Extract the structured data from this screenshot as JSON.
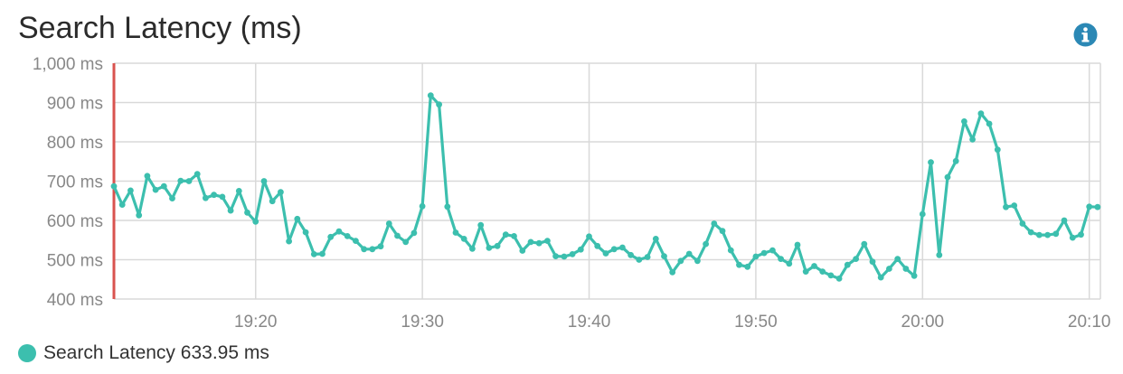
{
  "title": "Search Latency (ms)",
  "info_icon": "info-circle-icon",
  "colors": {
    "series": "#3cbfae",
    "marker": "#d9534f",
    "grid": "#d9d9d9",
    "axis_text": "#888888",
    "info": "#2b88b5"
  },
  "legend": {
    "label": "Search Latency",
    "value": "633.95 ms"
  },
  "chart_data": {
    "type": "line",
    "title": "Search Latency (ms)",
    "xlabel": "",
    "ylabel": "",
    "xlim": [
      "19:11:30",
      "20:10:40"
    ],
    "ylim": [
      400,
      1000
    ],
    "x_ticks": [
      "19:20",
      "19:30",
      "19:40",
      "19:50",
      "20:00",
      "20:10"
    ],
    "y_ticks": [
      "400 ms",
      "500 ms",
      "600 ms",
      "700 ms",
      "800 ms",
      "900 ms",
      "1,000 ms"
    ],
    "grid": true,
    "legend_position": "bottom-left",
    "series": [
      {
        "name": "Search Latency",
        "x": [
          "19:11:30",
          "19:12:00",
          "19:12:30",
          "19:13:00",
          "19:13:30",
          "19:14:00",
          "19:14:30",
          "19:15:00",
          "19:15:30",
          "19:16:00",
          "19:16:30",
          "19:17:00",
          "19:17:30",
          "19:18:00",
          "19:18:30",
          "19:19:00",
          "19:19:30",
          "19:20:00",
          "19:20:30",
          "19:21:00",
          "19:21:30",
          "19:22:00",
          "19:22:30",
          "19:23:00",
          "19:23:30",
          "19:24:00",
          "19:24:30",
          "19:25:00",
          "19:25:30",
          "19:26:00",
          "19:26:30",
          "19:27:00",
          "19:27:30",
          "19:28:00",
          "19:28:30",
          "19:29:00",
          "19:29:30",
          "19:30:00",
          "19:30:30",
          "19:31:00",
          "19:31:30",
          "19:32:00",
          "19:32:30",
          "19:33:00",
          "19:33:30",
          "19:34:00",
          "19:34:30",
          "19:35:00",
          "19:35:30",
          "19:36:00",
          "19:36:30",
          "19:37:00",
          "19:37:30",
          "19:38:00",
          "19:38:30",
          "19:39:00",
          "19:39:30",
          "19:40:00",
          "19:40:30",
          "19:41:00",
          "19:41:30",
          "19:42:00",
          "19:42:30",
          "19:43:00",
          "19:43:30",
          "19:44:00",
          "19:44:30",
          "19:45:00",
          "19:45:30",
          "19:46:00",
          "19:46:30",
          "19:47:00",
          "19:47:30",
          "19:48:00",
          "19:48:30",
          "19:49:00",
          "19:49:30",
          "19:50:00",
          "19:50:30",
          "19:51:00",
          "19:51:30",
          "19:52:00",
          "19:52:30",
          "19:53:00",
          "19:53:30",
          "19:54:00",
          "19:54:30",
          "19:55:00",
          "19:55:30",
          "19:56:00",
          "19:56:30",
          "19:57:00",
          "19:57:30",
          "19:58:00",
          "19:58:30",
          "19:59:00",
          "19:59:30",
          "20:00:00",
          "20:00:30",
          "20:01:00",
          "20:01:30",
          "20:02:00",
          "20:02:30",
          "20:03:00",
          "20:03:30",
          "20:04:00",
          "20:04:30",
          "20:05:00",
          "20:05:30",
          "20:06:00",
          "20:06:30",
          "20:07:00",
          "20:07:30",
          "20:08:00",
          "20:08:30",
          "20:09:00",
          "20:09:30",
          "20:10:00",
          "20:10:30"
        ],
        "values": [
          687,
          640,
          676,
          613,
          713,
          678,
          687,
          656,
          701,
          700,
          718,
          657,
          665,
          660,
          625,
          675,
          620,
          597,
          700,
          649,
          672,
          547,
          604,
          570,
          514,
          515,
          558,
          572,
          560,
          548,
          527,
          527,
          534,
          592,
          561,
          545,
          568,
          636,
          918,
          895,
          635,
          569,
          553,
          528,
          588,
          530,
          535,
          564,
          560,
          523,
          545,
          542,
          548,
          509,
          508,
          514,
          526,
          559,
          535,
          516,
          527,
          531,
          512,
          500,
          507,
          553,
          509,
          468,
          497,
          515,
          497,
          540,
          592,
          573,
          524,
          487,
          482,
          508,
          517,
          524,
          502,
          490,
          538,
          470,
          484,
          470,
          460,
          452,
          487,
          502,
          540,
          495,
          455,
          477,
          502,
          477,
          459,
          616,
          748,
          512,
          710,
          751,
          852,
          806,
          872,
          846,
          780,
          634,
          638,
          592,
          570,
          563,
          563,
          566,
          600,
          556,
          564,
          635,
          634
        ]
      }
    ]
  }
}
